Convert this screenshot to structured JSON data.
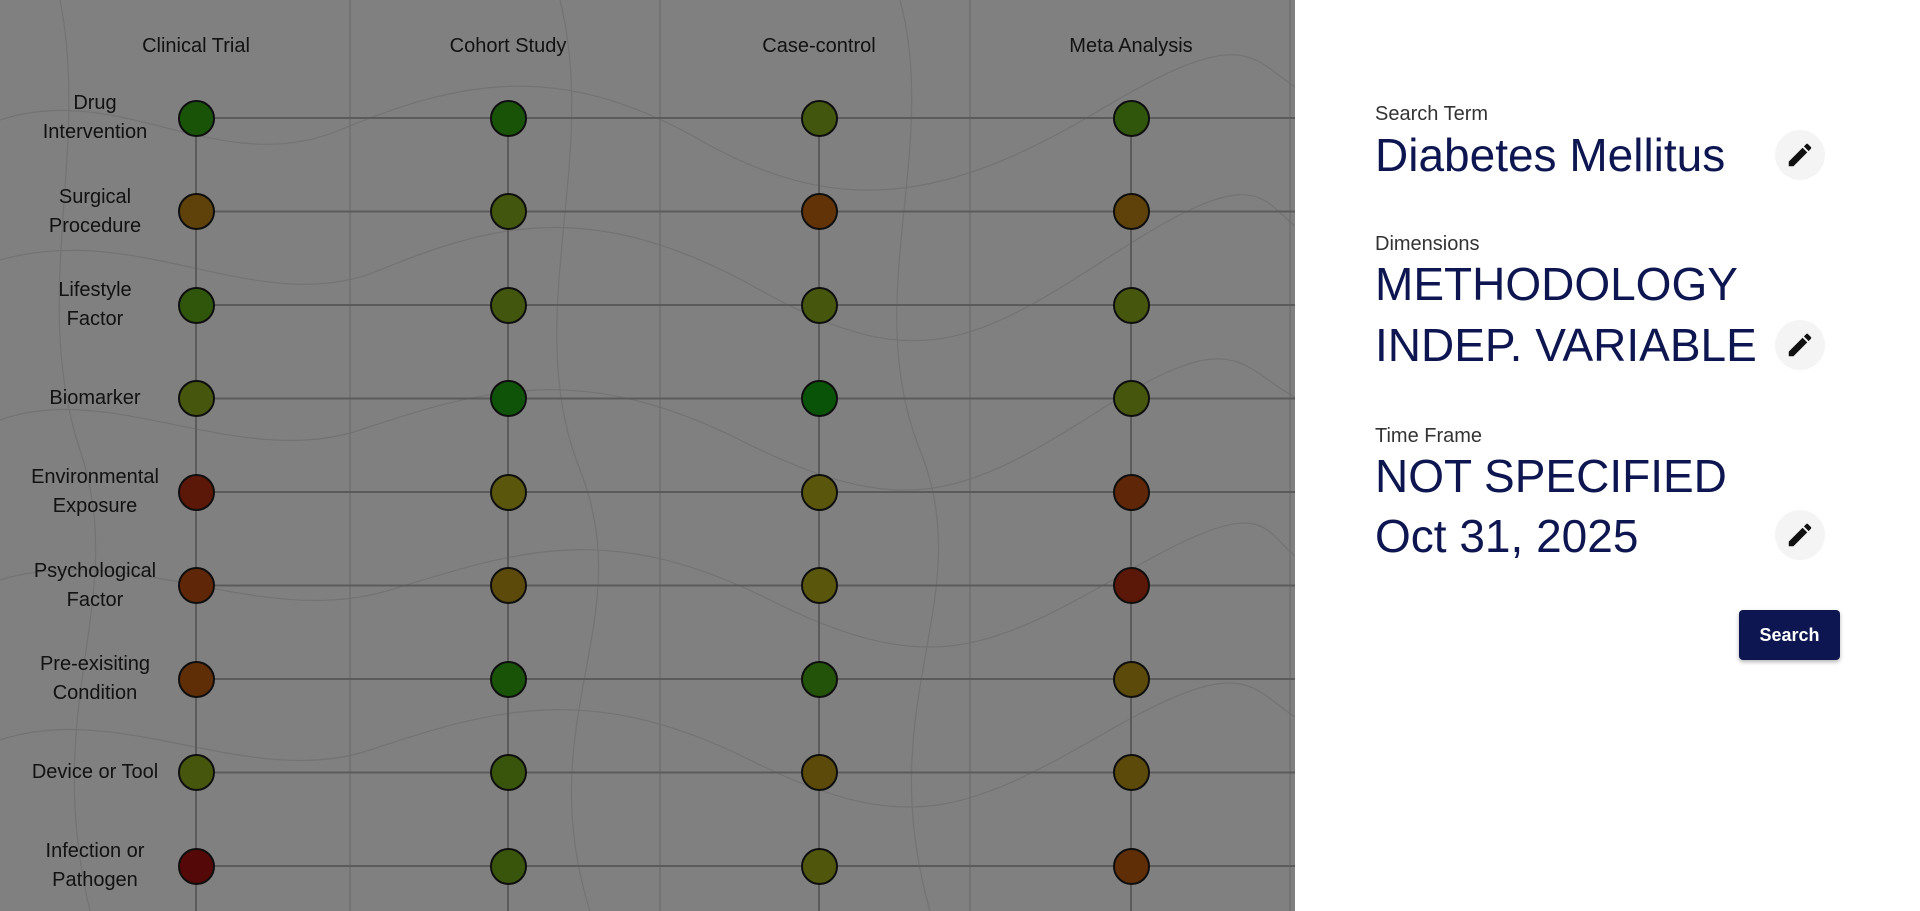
{
  "matrix": {
    "columns": [
      "Clinical Trial",
      "Cohort Study",
      "Case-control",
      "Meta Analysis"
    ],
    "rows": [
      {
        "label": "Drug\nIntervention",
        "colors": [
          "#2f9a10",
          "#2f9a10",
          "#7aa018",
          "#58a015"
        ]
      },
      {
        "label": "Surgical\nProcedure",
        "colors": [
          "#b07a12",
          "#7aa018",
          "#b55e0e",
          "#b07a12"
        ]
      },
      {
        "label": "Lifestyle\nFactor",
        "colors": [
          "#58a015",
          "#7aa018",
          "#84a018",
          "#84a018"
        ]
      },
      {
        "label": "Biomarker",
        "colors": [
          "#84a018",
          "#1b9a10",
          "#129a10",
          "#84a018"
        ]
      },
      {
        "label": "Environmental\nExposure",
        "colors": [
          "#a82b0e",
          "#a6a016",
          "#a6a016",
          "#b0480e"
        ]
      },
      {
        "label": "Psychological\nFactor",
        "colors": [
          "#b0480e",
          "#a88a14",
          "#a6a016",
          "#a82b0e"
        ]
      },
      {
        "label": "Pre-exisiting\nCondition",
        "colors": [
          "#b0550e",
          "#2f9a10",
          "#429a10",
          "#a88a14"
        ]
      },
      {
        "label": "Device or Tool",
        "colors": [
          "#84a018",
          "#6a9e16",
          "#a88a14",
          "#a88a14"
        ]
      },
      {
        "label": "Infection or\nPathogen",
        "colors": [
          "#9c1010",
          "#6a9e16",
          "#94a016",
          "#b0550e"
        ]
      }
    ]
  },
  "panel": {
    "search_term_label": "Search Term",
    "search_term_value": "Diabetes Mellitus",
    "dimensions_label": "Dimensions",
    "dimensions_line1": "METHODOLOGY",
    "dimensions_line2": "INDEP. VARIABLE",
    "time_frame_label": "Time Frame",
    "time_frame_line1": "NOT SPECIFIED",
    "time_frame_line2": "Oct 31, 2025",
    "search_button": "Search",
    "close_icon": "close-icon",
    "edit_icon": "pencil-icon"
  },
  "colors": {
    "accent": "#0d1650",
    "overlay": "rgba(0,0,0,0.46)"
  }
}
